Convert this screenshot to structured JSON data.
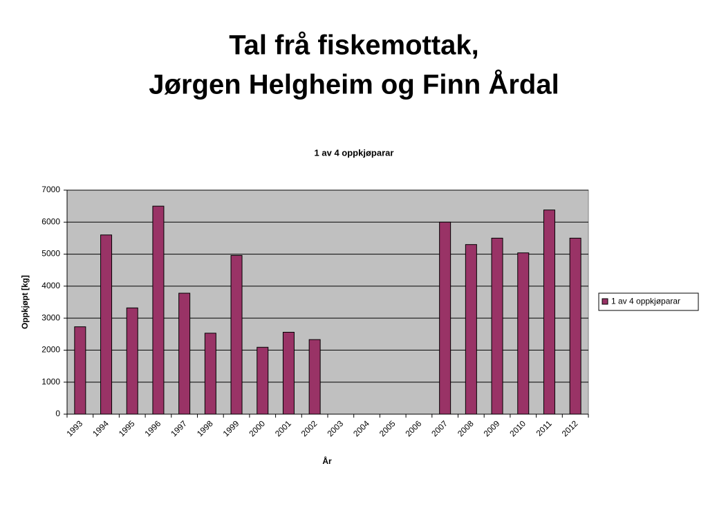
{
  "slide_title": [
    "Tal frå fiskemottak,",
    "Jørgen Helgheim og Finn Årdal"
  ],
  "chart_data": {
    "type": "bar",
    "title": "1 av 4 oppkjøparar",
    "x_label": "År",
    "y_label": "Oppkjøpt [kg]",
    "categories": [
      "1993",
      "1994",
      "1995",
      "1996",
      "1997",
      "1998",
      "1999",
      "2000",
      "2001",
      "2002",
      "2003",
      "2004",
      "2005",
      "2006",
      "2007",
      "2008",
      "2009",
      "2010",
      "2011",
      "2012"
    ],
    "series": [
      {
        "name": "1 av 4 oppkjøparar",
        "color": "#993366",
        "values": [
          2730,
          5600,
          3320,
          6500,
          3780,
          2530,
          4960,
          2090,
          2560,
          2330,
          null,
          null,
          null,
          null,
          6000,
          5300,
          5500,
          5040,
          6380,
          5500
        ]
      }
    ],
    "ylim": [
      0,
      7000
    ],
    "yticks": [
      0,
      1000,
      2000,
      3000,
      4000,
      5000,
      6000,
      7000
    ],
    "grid": true,
    "legend": "right"
  }
}
